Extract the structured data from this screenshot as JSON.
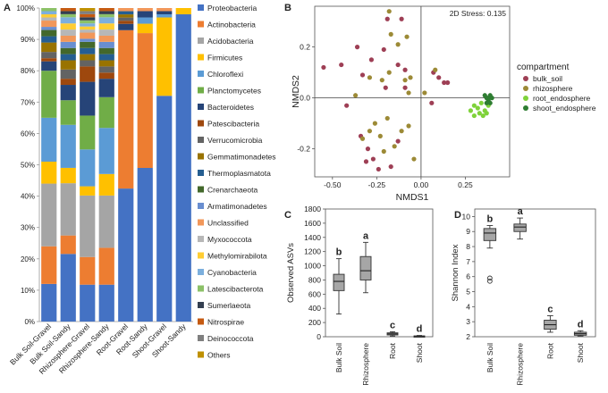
{
  "chart_data": [
    {
      "panel": "A",
      "type": "bar",
      "stacked": true,
      "percent": true,
      "categories": [
        "Bulk Soil-Gravel",
        "Bulk Soil-Sandy",
        "Rhizosphere-Gravel",
        "Rhizosphere-Sandy",
        "Root-Gravel",
        "Root-Sandy",
        "Shoot-Gravel",
        "Shoot-Sandy"
      ],
      "yticks": [
        "0%",
        "10%",
        "20%",
        "30%",
        "40%",
        "50%",
        "60%",
        "70%",
        "80%",
        "90%",
        "100%"
      ],
      "ylim": [
        0,
        100
      ],
      "series": [
        {
          "name": "Proteobacteria",
          "color": "#4472c4",
          "values": [
            12,
            22,
            12,
            12,
            42,
            49,
            72,
            98
          ]
        },
        {
          "name": "Actinobacteria",
          "color": "#ed7d31",
          "values": [
            12,
            6,
            9,
            12,
            50,
            43,
            0,
            0
          ]
        },
        {
          "name": "Acidobacteria",
          "color": "#a5a5a5",
          "values": [
            20,
            17,
            20,
            17,
            0,
            0,
            0,
            0
          ]
        },
        {
          "name": "Firmicutes",
          "color": "#ffc000",
          "values": [
            7,
            5,
            3,
            7,
            0,
            3,
            25,
            2
          ]
        },
        {
          "name": "Chloroflexi",
          "color": "#5b9bd5",
          "values": [
            14,
            14,
            12,
            15,
            0,
            2,
            1,
            0
          ]
        },
        {
          "name": "Planctomycetes",
          "color": "#70ad47",
          "values": [
            15,
            8,
            11,
            10,
            0,
            0,
            0,
            0
          ]
        },
        {
          "name": "Bacteroidetes",
          "color": "#264478",
          "values": [
            3,
            5,
            11,
            6,
            2,
            2,
            1,
            0
          ]
        },
        {
          "name": "Patescibacteria",
          "color": "#9e480e",
          "values": [
            1,
            2,
            5,
            2,
            1,
            0,
            0,
            0
          ]
        },
        {
          "name": "Verrucomicrobia",
          "color": "#636363",
          "values": [
            2,
            3,
            2,
            2,
            1,
            0,
            0,
            0
          ]
        },
        {
          "name": "Gemmatimonadetes",
          "color": "#997300",
          "values": [
            3,
            3,
            2,
            2,
            1,
            0,
            0,
            0
          ]
        },
        {
          "name": "Thermoplasmatota",
          "color": "#255e91",
          "values": [
            2,
            2,
            2,
            2,
            1,
            0,
            0,
            0
          ]
        },
        {
          "name": "Crenarchaeota",
          "color": "#43682b",
          "values": [
            2,
            2,
            2,
            2,
            0,
            0,
            0,
            0
          ]
        },
        {
          "name": "Armatimonadetes",
          "color": "#698ed0",
          "values": [
            1,
            2,
            1,
            2,
            0,
            0,
            0,
            0
          ]
        },
        {
          "name": "Unclassified",
          "color": "#f1975a",
          "values": [
            2,
            2,
            2,
            2,
            1,
            1,
            1,
            0
          ]
        },
        {
          "name": "Myxococcota",
          "color": "#b7b7b7",
          "values": [
            1,
            2,
            1,
            2,
            0,
            0,
            0,
            0
          ]
        },
        {
          "name": "Methylomirabilota",
          "color": "#ffcd33",
          "values": [
            1,
            2,
            1,
            2,
            0,
            0,
            0,
            0
          ]
        },
        {
          "name": "Cyanobacteria",
          "color": "#7cafdd",
          "values": [
            1,
            2,
            1,
            2,
            0,
            0,
            0,
            0
          ]
        },
        {
          "name": "Latescibacterota",
          "color": "#8cc168",
          "values": [
            1,
            1,
            1,
            1,
            0,
            0,
            0,
            0
          ]
        },
        {
          "name": "Sumerlaeota",
          "color": "#333f50",
          "values": [
            0,
            1,
            1,
            1,
            0,
            0,
            0,
            0
          ]
        },
        {
          "name": "Nitrospirae",
          "color": "#c55a11",
          "values": [
            0,
            1,
            1,
            1,
            0,
            0,
            0,
            0
          ]
        },
        {
          "name": "Deinococcota",
          "color": "#7f7f7f",
          "values": [
            0,
            0,
            1,
            0,
            0,
            0,
            0,
            0
          ]
        },
        {
          "name": "Others",
          "color": "#bf9000",
          "values": [
            0,
            0,
            1,
            0,
            0,
            0,
            0,
            0
          ]
        }
      ]
    },
    {
      "panel": "B",
      "type": "scatter",
      "xlabel": "NMDS1",
      "ylabel": "NMDS2",
      "annotation": "2D Stress: 0.135",
      "xlim": [
        -0.6,
        0.5
      ],
      "ylim": [
        -0.31,
        0.36
      ],
      "xticks": [
        "-0.50",
        "-0.25",
        "0.00",
        "0.25"
      ],
      "xtick_values": [
        -0.5,
        -0.25,
        0,
        0.25
      ],
      "yticks": [
        "0.2",
        "0.0",
        "-0.2"
      ],
      "ytick_values": [
        0.2,
        0,
        -0.2
      ],
      "legend_title": "compartment",
      "legend_position": "right",
      "series": [
        {
          "name": "bulk_soil",
          "color": "#9e3f55",
          "points": [
            [
              -0.19,
              0.31
            ],
            [
              -0.11,
              0.31
            ],
            [
              -0.36,
              0.2
            ],
            [
              -0.55,
              0.12
            ],
            [
              -0.45,
              0.13
            ],
            [
              -0.28,
              0.15
            ],
            [
              -0.21,
              0.19
            ],
            [
              -0.13,
              0.13
            ],
            [
              -0.09,
              0.11
            ],
            [
              -0.33,
              0.09
            ],
            [
              -0.42,
              -0.03
            ],
            [
              -0.2,
              0.04
            ],
            [
              -0.09,
              0.04
            ],
            [
              0.07,
              0.1
            ],
            [
              0.1,
              0.08
            ],
            [
              0.13,
              0.06
            ],
            [
              0.15,
              0.06
            ],
            [
              0.06,
              -0.02
            ],
            [
              -0.3,
              -0.2
            ],
            [
              -0.27,
              -0.24
            ],
            [
              -0.24,
              -0.28
            ],
            [
              -0.17,
              -0.27
            ],
            [
              -0.13,
              -0.17
            ],
            [
              -0.34,
              -0.15
            ],
            [
              -0.31,
              -0.25
            ]
          ]
        },
        {
          "name": "rhizosphere",
          "color": "#9c8a36",
          "points": [
            [
              -0.18,
              0.34
            ],
            [
              -0.17,
              0.25
            ],
            [
              -0.13,
              0.21
            ],
            [
              -0.08,
              0.24
            ],
            [
              -0.18,
              0.1
            ],
            [
              -0.09,
              0.07
            ],
            [
              -0.06,
              0.08
            ],
            [
              -0.37,
              0.01
            ],
            [
              -0.29,
              0.08
            ],
            [
              -0.22,
              0.07
            ],
            [
              0.08,
              0.11
            ],
            [
              0.02,
              0.02
            ],
            [
              -0.07,
              0.02
            ],
            [
              -0.26,
              -0.1
            ],
            [
              -0.23,
              -0.15
            ],
            [
              -0.19,
              -0.08
            ],
            [
              -0.29,
              -0.13
            ],
            [
              -0.33,
              -0.16
            ],
            [
              -0.21,
              -0.21
            ],
            [
              -0.15,
              -0.19
            ],
            [
              -0.11,
              -0.13
            ],
            [
              -0.07,
              -0.11
            ],
            [
              -0.04,
              -0.24
            ]
          ]
        },
        {
          "name": "root_endosphere",
          "color": "#7fd23a",
          "points": [
            [
              0.28,
              -0.05
            ],
            [
              0.3,
              -0.03
            ],
            [
              0.32,
              -0.04
            ],
            [
              0.33,
              -0.06
            ],
            [
              0.35,
              -0.07
            ],
            [
              0.36,
              -0.05
            ],
            [
              0.38,
              -0.03
            ],
            [
              0.3,
              -0.07
            ],
            [
              0.34,
              -0.02
            ],
            [
              0.37,
              -0.06
            ]
          ]
        },
        {
          "name": "shoot_endosphere",
          "color": "#2e7d32",
          "points": [
            [
              0.36,
              0.01
            ],
            [
              0.37,
              0.0
            ],
            [
              0.38,
              -0.01
            ],
            [
              0.39,
              0.01
            ],
            [
              0.37,
              -0.02
            ],
            [
              0.39,
              -0.02
            ],
            [
              0.38,
              0.0
            ],
            [
              0.4,
              0.0
            ]
          ]
        }
      ]
    },
    {
      "panel": "C",
      "type": "box",
      "ylabel": "Observed ASVs",
      "ylim": [
        0,
        1800
      ],
      "yticks": [
        0,
        200,
        400,
        600,
        800,
        1000,
        1200,
        1400,
        1600,
        1800
      ],
      "categories": [
        "Bulk Soil",
        "Rhizosphere",
        "Root",
        "Shoot"
      ],
      "letters": [
        "b",
        "a",
        "c",
        "d"
      ],
      "boxes": [
        {
          "min": 320,
          "q1": 650,
          "median": 780,
          "q3": 880,
          "max": 1100,
          "outliers": []
        },
        {
          "min": 620,
          "q1": 800,
          "median": 930,
          "q3": 1130,
          "max": 1330,
          "outliers": []
        },
        {
          "min": 10,
          "q1": 25,
          "median": 40,
          "q3": 55,
          "max": 70,
          "outliers": []
        },
        {
          "min": 2,
          "q1": 5,
          "median": 8,
          "q3": 12,
          "max": 18,
          "outliers": []
        }
      ]
    },
    {
      "panel": "D",
      "type": "box",
      "ylabel": "Shannon Index",
      "ylim": [
        2,
        10.5
      ],
      "yticks": [
        2,
        3,
        4,
        5,
        6,
        7,
        8,
        9,
        10
      ],
      "categories": [
        "Bulk Soil",
        "Rhizosphere",
        "Root",
        "Shoot"
      ],
      "letters": [
        "b",
        "a",
        "c",
        "d"
      ],
      "boxes": [
        {
          "min": 7.9,
          "q1": 8.4,
          "median": 8.9,
          "q3": 9.2,
          "max": 9.4,
          "outliers": [
            5.9,
            5.7
          ]
        },
        {
          "min": 8.5,
          "q1": 9.0,
          "median": 9.3,
          "q3": 9.5,
          "max": 9.9,
          "outliers": []
        },
        {
          "min": 2.3,
          "q1": 2.5,
          "median": 2.8,
          "q3": 3.1,
          "max": 3.4,
          "outliers": []
        },
        {
          "min": 2.05,
          "q1": 2.1,
          "median": 2.2,
          "q3": 2.3,
          "max": 2.4,
          "outliers": []
        }
      ]
    }
  ]
}
